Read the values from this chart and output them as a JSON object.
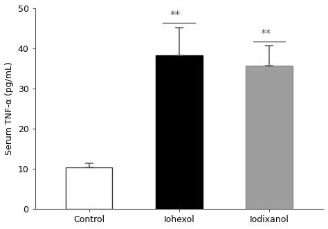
{
  "categories": [
    "Control",
    "Iohexol",
    "Iodixanol"
  ],
  "values": [
    10.4,
    38.2,
    35.6
  ],
  "errors_up": [
    1.0,
    7.0,
    5.0
  ],
  "errors_down": [
    1.0,
    7.0,
    5.0
  ],
  "bar_colors": [
    "#ffffff",
    "#000000",
    "#9e9e9e"
  ],
  "bar_edgecolors": [
    "#333333",
    "#000000",
    "#888888"
  ],
  "ylabel": "Serum TNF-α (pg/mL)",
  "ylim": [
    0,
    50
  ],
  "yticks": [
    0,
    10,
    20,
    30,
    40,
    50
  ],
  "significance": [
    "",
    "**",
    "**"
  ],
  "bar_width": 0.52,
  "background_color": "#ffffff",
  "capsize": 4,
  "sig_fontsize": 11,
  "tick_fontsize": 9,
  "label_fontsize": 9
}
